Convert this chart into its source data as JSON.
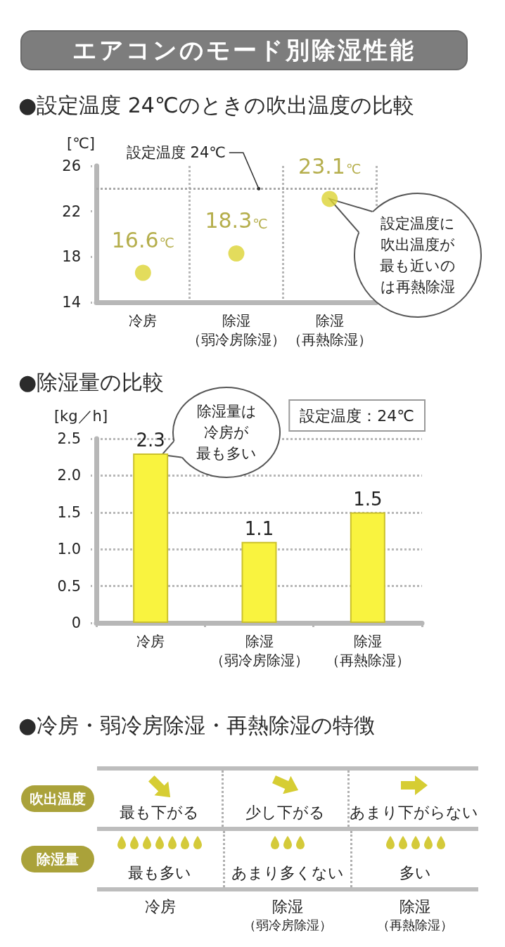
{
  "chart_data": [
    {
      "type": "scatter",
      "title": "エアコンのモード別除湿性能",
      "subtitle": "●設定温度 24℃のときの吹出温度の比較",
      "ylabel": "[℃]",
      "categories": [
        "冷房",
        "除湿（弱冷房除湿）",
        "除湿（再熱除湿）"
      ],
      "values": [
        16.6,
        18.3,
        23.1
      ],
      "value_labels": [
        "16.6℃",
        "18.3℃",
        "23.1℃"
      ],
      "color": "#dcd333",
      "marker": "circle",
      "ylim": [
        14,
        26
      ],
      "yticks": [
        14,
        18,
        22,
        26
      ],
      "grid": "x",
      "ref_lines": [
        {
          "axis": "y",
          "value": 24,
          "label": "設定温度 24℃",
          "color": "#a8a8a8",
          "line_style": "dotted"
        }
      ],
      "annotations": [
        "設定温度に吹出温度が最も近いのは再熱除湿"
      ]
    },
    {
      "type": "bar",
      "title": "●除湿量の比較",
      "ylabel": "[kg／h]",
      "categories": [
        "冷房",
        "除湿（弱冷房除湿）",
        "除湿（再熱除湿）"
      ],
      "values": [
        2.3,
        1.1,
        1.5
      ],
      "color": "#f9f33f",
      "data_labels": true,
      "ylim": [
        0,
        2.5
      ],
      "yticks": [
        0,
        0.5,
        {
          "value": 1,
          "label": "1.0"
        },
        1.5,
        {
          "value": 2,
          "label": "2.0"
        },
        2.5
      ],
      "grid": "y",
      "annotations": [
        "除湿量は冷房が最も多い",
        "設定温度：24℃"
      ]
    },
    {
      "type": "other",
      "title": "●冷房・弱冷房除湿・再熱除湿の特徴",
      "categories": [
        "冷房",
        "除湿（弱冷房除湿）",
        "除湿（再熱除湿）"
      ],
      "y_categories": [
        "吹出温度",
        "除湿量"
      ],
      "cell_labels": [
        [
          "最も下がる",
          "少し下がる",
          "あまり下がらない"
        ],
        [
          "最も多い",
          "あまり多くない",
          "多い"
        ]
      ]
    }
  ]
}
